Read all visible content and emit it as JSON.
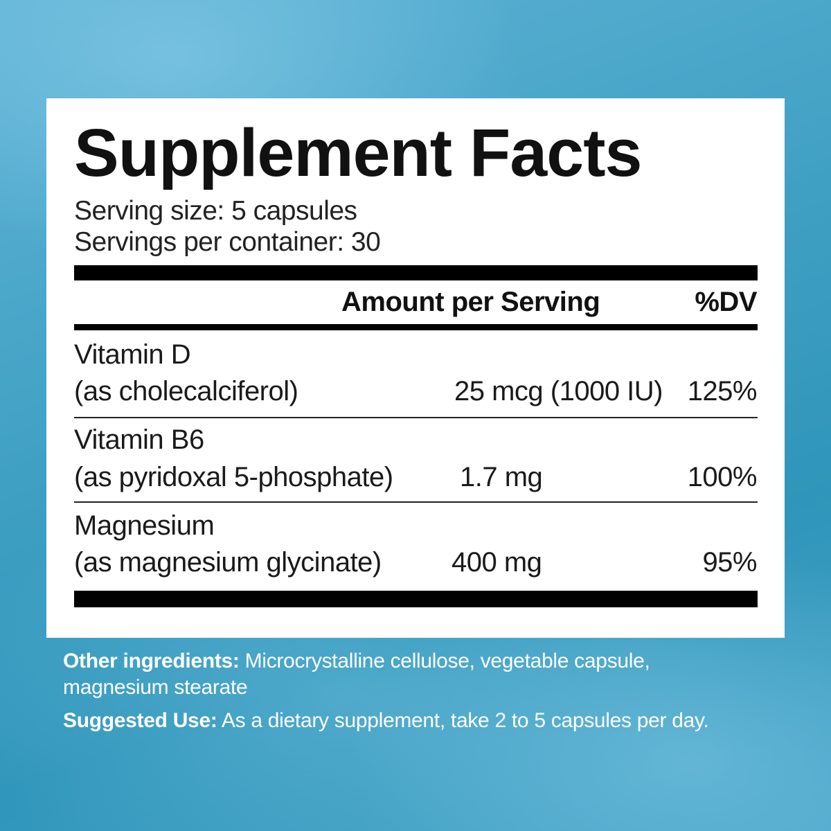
{
  "label": {
    "title": "Supplement Facts",
    "serving_size": "Serving size: 5 capsules",
    "servings_per_container": "Servings per container: 30",
    "header": {
      "amount": "Amount per Serving",
      "dv": "%DV"
    },
    "rows": [
      {
        "name": "Vitamin D",
        "form": "(as cholecalciferol)",
        "amount": "25 mcg (1000 IU)",
        "dv": "125%"
      },
      {
        "name": "Vitamin B6",
        "form": "(as pyridoxal 5-phosphate)",
        "amount": "1.7 mg",
        "dv": "100%"
      },
      {
        "name": "Magnesium",
        "form": "(as magnesium glycinate)",
        "amount": "400 mg",
        "dv": "95%"
      }
    ]
  },
  "footer": {
    "other_label": "Other ingredients:",
    "other_text": "Microcrystalline cellulose, vegetable capsule, magnesium stearate",
    "use_label": "Suggested Use:",
    "use_text": "As a dietary supplement, take 2 to 5 capsules per day."
  }
}
